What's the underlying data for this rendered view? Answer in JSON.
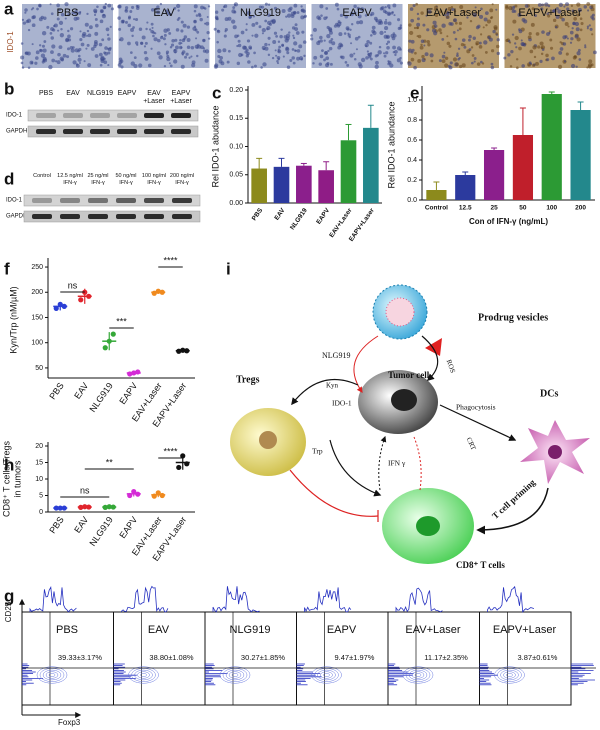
{
  "panel_labels": [
    "a",
    "b",
    "c",
    "d",
    "e",
    "f",
    "g",
    "h",
    "i"
  ],
  "panel_a": {
    "stain": "IDO-1",
    "groups": [
      "PBS",
      "EAV",
      "NLG919",
      "EAPV",
      "EAV+Laser",
      "EAPV+Laser"
    ]
  },
  "panel_b": {
    "groups": [
      "PBS",
      "EAV",
      "NLG919",
      "EAPV",
      "EAV +Laser",
      "EAPV +Laser"
    ],
    "rows": [
      "IDO-1",
      "GAPDH"
    ]
  },
  "panel_d": {
    "groups": [
      "Control",
      "12.5 ng/ml IFN-γ",
      "25 ng/ml IFN-γ",
      "50 ng/ml IFN-γ",
      "100 ng/ml IFN-γ",
      "200 ng/ml IFN-γ"
    ],
    "rows": [
      "IDO-1",
      "GAPDH"
    ]
  },
  "chart_data": [
    {
      "type": "bar",
      "ylabel": "Rel IDO-1 abudance",
      "categories": [
        "PBS",
        "EAV",
        "NLG919",
        "EAPV",
        "EAV+Laser",
        "EAPV+Laser"
      ],
      "values": [
        0.061,
        0.064,
        0.066,
        0.058,
        0.111,
        0.133
      ],
      "errors": [
        0.018,
        0.015,
        0.004,
        0.015,
        0.028,
        0.04
      ],
      "colors": [
        "#8c8a1c",
        "#2c3a9e",
        "#8b1f8c",
        "#8f1c86",
        "#2c9a34",
        "#23888c"
      ],
      "ylim": [
        0,
        0.2
      ],
      "yticks": [
        {
          "value": 0,
          "label": "0.00"
        },
        0.05,
        {
          "value": 0.1,
          "label": "0.10"
        },
        0.15,
        {
          "value": 0.2,
          "label": "0.20"
        }
      ]
    },
    {
      "type": "bar",
      "ylabel": "Rel IDO-1 abundance",
      "xlabel": "Con of IFN-γ (ng/mL)",
      "categories": [
        "Control",
        "12.5",
        "25",
        "50",
        "100",
        "200"
      ],
      "values": [
        0.1,
        0.25,
        0.5,
        0.65,
        1.06,
        0.9
      ],
      "errors": [
        0.08,
        0.03,
        0.02,
        0.27,
        0.02,
        0.08
      ],
      "colors": [
        "#8c8a1c",
        "#2c3a9e",
        "#8b1f8c",
        "#c01f2b",
        "#2c9a34",
        "#23888c"
      ],
      "ylim": [
        0,
        1.1
      ],
      "yticks": [
        {
          "value": 0,
          "label": "0.0"
        },
        0.2,
        0.4,
        0.6,
        0.8,
        {
          "value": 1,
          "label": "1.0"
        }
      ]
    },
    {
      "type": "dot",
      "ylabel": "Kyn/Trp (nM/µM)",
      "categories": [
        "PBS",
        "EAV",
        "NLG919",
        "EAPV",
        "EAV+Laser",
        "EAPV+Laser"
      ],
      "values": [
        172,
        192,
        103,
        40,
        200,
        84
      ],
      "errors": [
        8,
        15,
        18,
        4,
        3,
        2
      ],
      "points": [
        [
          168,
          176,
          172
        ],
        [
          185,
          200,
          192
        ],
        [
          90,
          103,
          117
        ],
        [
          38,
          40,
          42
        ],
        [
          198,
          202,
          200
        ],
        [
          83,
          85,
          84
        ]
      ],
      "colors": [
        "#2b3fd6",
        "#e0242c",
        "#35a838",
        "#d42bd6",
        "#f08a1e",
        "#111111"
      ],
      "annotations": [
        "ns",
        "***",
        "****"
      ],
      "ylim": [
        30,
        260
      ],
      "yticks": [
        50,
        100,
        150,
        200,
        250
      ]
    },
    {
      "type": "dot",
      "ylabel": [
        "CD8⁺ T cells/Tregs",
        "in tumors"
      ],
      "categories": [
        "PBS",
        "EAV",
        "NLG919",
        "EAPV",
        "EAV+Laser",
        "EAPV+Laser"
      ],
      "values": [
        1.2,
        1.5,
        1.5,
        5.5,
        5.2,
        15
      ],
      "errors": [
        0.1,
        0.2,
        0.2,
        0.8,
        0.7,
        2.2
      ],
      "points": [
        [
          1.2,
          1.2,
          1.2
        ],
        [
          1.4,
          1.6,
          1.5
        ],
        [
          1.4,
          1.6,
          1.5
        ],
        [
          5.0,
          6.2,
          5.4
        ],
        [
          4.8,
          5.8,
          5.0
        ],
        [
          13.5,
          17,
          14.6
        ]
      ],
      "colors": [
        "#2b3fd6",
        "#e0242c",
        "#35a838",
        "#d42bd6",
        "#f08a1e",
        "#111111"
      ],
      "annotations": [
        "ns",
        "**",
        "****"
      ],
      "ylim": [
        0,
        20
      ],
      "yticks": [
        0,
        5,
        10,
        15,
        20
      ]
    }
  ],
  "panel_g": {
    "y_label": "CD25",
    "x_label": "Foxp3",
    "groups": [
      {
        "name": "PBS",
        "value": "39.33±3.17%"
      },
      {
        "name": "EAV",
        "value": "38.80±1.08%"
      },
      {
        "name": "NLG919",
        "value": "30.27±1.85%"
      },
      {
        "name": "EAPV",
        "value": "9.47±1.97%"
      },
      {
        "name": "EAV+Laser",
        "value": "11.17±2.35%"
      },
      {
        "name": "EAPV+Laser",
        "value": "3.87±0.61%"
      }
    ]
  },
  "panel_i": {
    "vesicles": "Prodrug vesicles",
    "drug": "NLG919",
    "ros": "ROS",
    "tumor": "Tumor cell",
    "tregs": "Tregs",
    "kyn": "Kyn",
    "ido": "IDO-1",
    "phago": "Phagocytosis",
    "dcs": "DCs",
    "crt": "CRT",
    "trp": "Trp",
    "ifn": "IFN γ",
    "priming": "T cell priming",
    "cd8": "CD8⁺ T cells"
  }
}
